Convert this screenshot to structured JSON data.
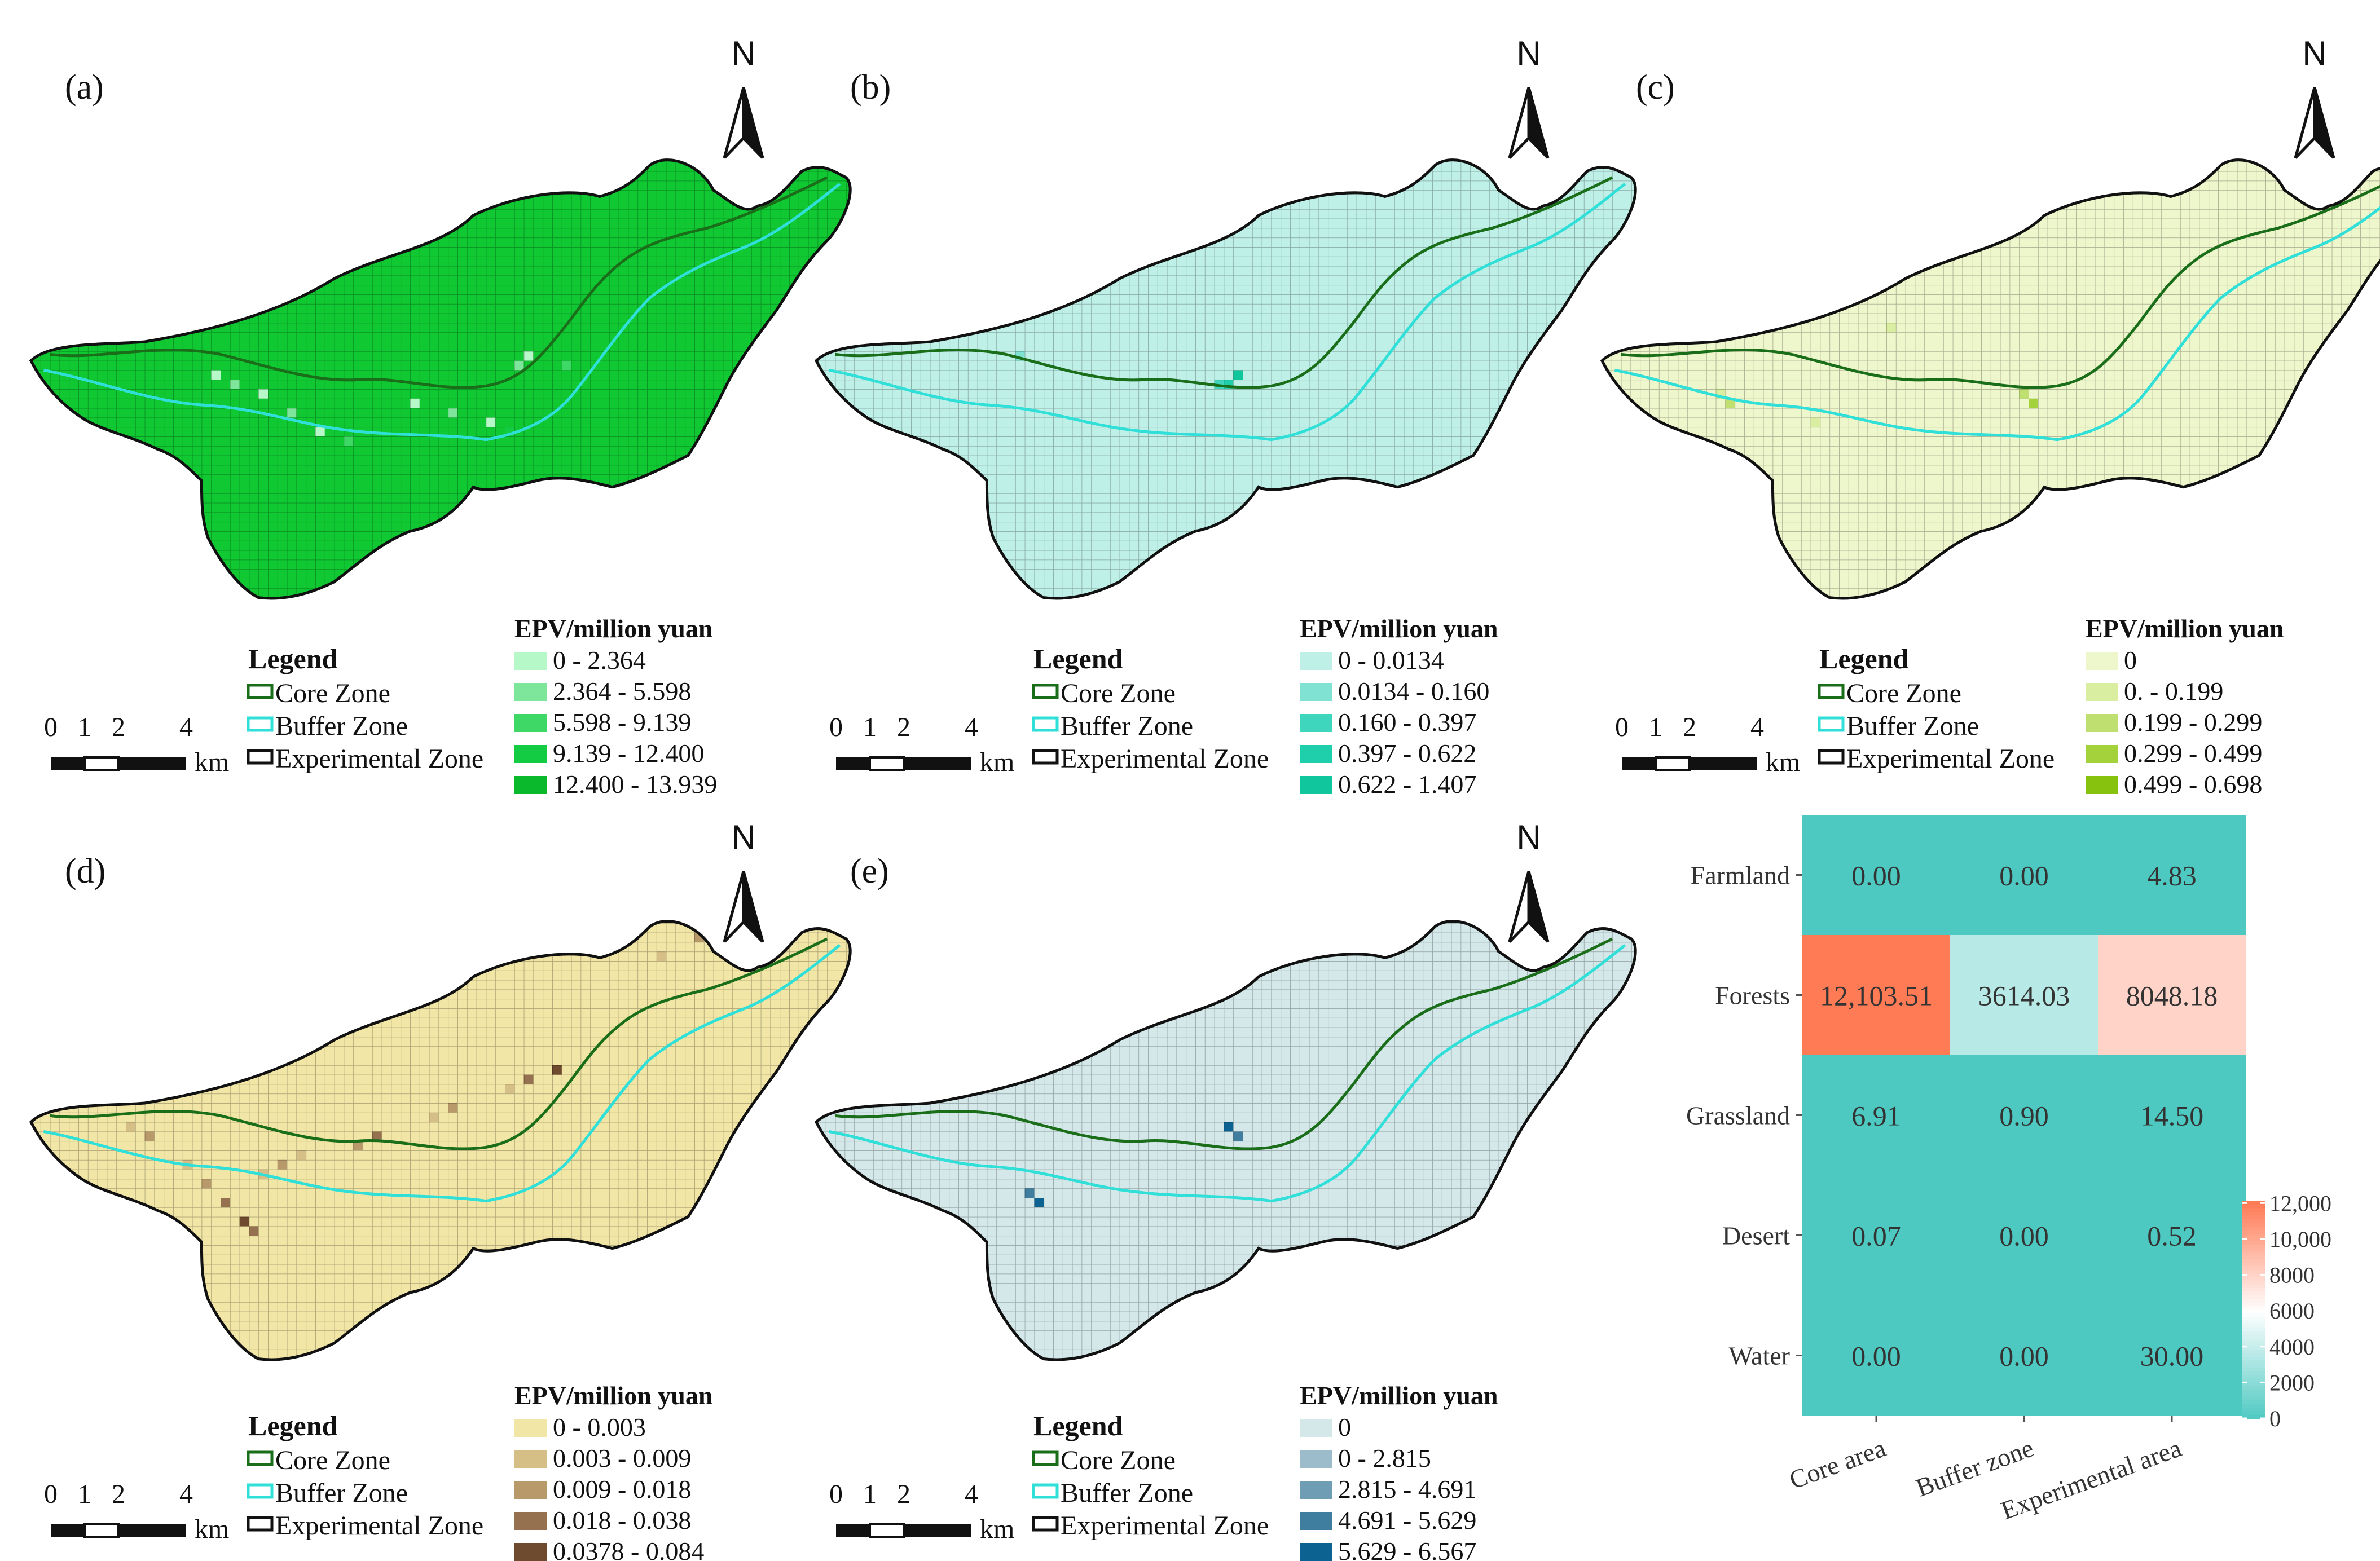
{
  "north_label": "N",
  "legend": {
    "title": "Legend",
    "core": "Core Zone",
    "buffer": "Buffer Zone",
    "experimental": "Experimental Zone",
    "core_color": "#1a6e1a",
    "buffer_color": "#30e0d8",
    "experimental_color": "#111111"
  },
  "scale": {
    "labels": [
      "0",
      "1",
      "2",
      "4"
    ],
    "unit": "km"
  },
  "panels": [
    {
      "id": "a",
      "label": "(a)",
      "base_color": "#10c832",
      "epv_title": "EPV/million yuan",
      "classes": [
        {
          "range": "0 - 2.364",
          "color": "#b6f8c8"
        },
        {
          "range": "2.364 - 5.598",
          "color": "#7ee69a"
        },
        {
          "range": "5.598 - 9.139",
          "color": "#3ed866"
        },
        {
          "range": "9.139 - 12.400",
          "color": "#14cc44"
        },
        {
          "range": "12.400 - 13.939",
          "color": "#0aba2c"
        }
      ]
    },
    {
      "id": "b",
      "label": "(b)",
      "base_color": "#bff0e8",
      "epv_title": "EPV/million yuan",
      "classes": [
        {
          "range": "0 - 0.0134",
          "color": "#bff0e8"
        },
        {
          "range": "0.0134 - 0.160",
          "color": "#7fe2d2"
        },
        {
          "range": "0.160 - 0.397",
          "color": "#3ed6bc"
        },
        {
          "range": "0.397 - 0.622",
          "color": "#1fcfac"
        },
        {
          "range": "0.622 - 1.407",
          "color": "#10c79d"
        }
      ]
    },
    {
      "id": "c",
      "label": "(c)",
      "base_color": "#eef6cc",
      "epv_title": "EPV/million yuan",
      "classes": [
        {
          "range": "0",
          "color": "#eef6cc"
        },
        {
          "range": "0. - 0.199",
          "color": "#d9eea0"
        },
        {
          "range": "0.199 - 0.299",
          "color": "#bfe070"
        },
        {
          "range": "0.299 - 0.499",
          "color": "#a4d23a"
        },
        {
          "range": "0.499 - 0.698",
          "color": "#86c20e"
        }
      ]
    },
    {
      "id": "d",
      "label": "(d)",
      "base_color": "#f2e6a6",
      "epv_title": "EPV/million yuan",
      "classes": [
        {
          "range": "0 - 0.003",
          "color": "#f2e6a6"
        },
        {
          "range": "0.003 - 0.009",
          "color": "#d6bf86"
        },
        {
          "range": "0.009 - 0.018",
          "color": "#b89a6a"
        },
        {
          "range": "0.018 - 0.038",
          "color": "#957150"
        },
        {
          "range": "0.0378 - 0.084",
          "color": "#6e4a2e"
        }
      ]
    },
    {
      "id": "e",
      "label": "(e)",
      "base_color": "#d4e8ea",
      "epv_title": "EPV/million yuan",
      "classes": [
        {
          "range": "0",
          "color": "#d4e8ea"
        },
        {
          "range": "0 - 2.815",
          "color": "#9cbccc"
        },
        {
          "range": "2.815 - 4.691",
          "color": "#6f9db4"
        },
        {
          "range": "4.691 - 5.629",
          "color": "#3f7e9e"
        },
        {
          "range": "5.629 - 6.567",
          "color": "#0c6290"
        }
      ]
    }
  ],
  "heatmap": {
    "rows": [
      "Farmland",
      "Forests",
      "Grassland",
      "Desert",
      "Water"
    ],
    "cols": [
      "Core area",
      "Buffer zone",
      "Experimental area"
    ],
    "values": [
      [
        0.0,
        0.0,
        4.83
      ],
      [
        12103.51,
        3614.03,
        8048.18
      ],
      [
        6.91,
        0.9,
        14.5
      ],
      [
        0.07,
        0.0,
        0.52
      ],
      [
        0.0,
        0.0,
        30.0
      ]
    ],
    "labels": [
      [
        "0.00",
        "0.00",
        "4.83"
      ],
      [
        "12,103.51",
        "3614.03",
        "8048.18"
      ],
      [
        "6.91",
        "0.90",
        "14.50"
      ],
      [
        "0.07",
        "0.00",
        "0.52"
      ],
      [
        "0.00",
        "0.00",
        "30.00"
      ]
    ],
    "colorbar_ticks": [
      "12,000",
      "10,000",
      "8000",
      "6000",
      "4000",
      "2000",
      "0"
    ],
    "colorbar_values": [
      12000,
      10000,
      8000,
      6000,
      4000,
      2000,
      0
    ],
    "colorbar_max": 12103.51,
    "low_color": "#4dc9c2",
    "mid_color": "#ffffff",
    "high_color": "#ff7b56"
  }
}
